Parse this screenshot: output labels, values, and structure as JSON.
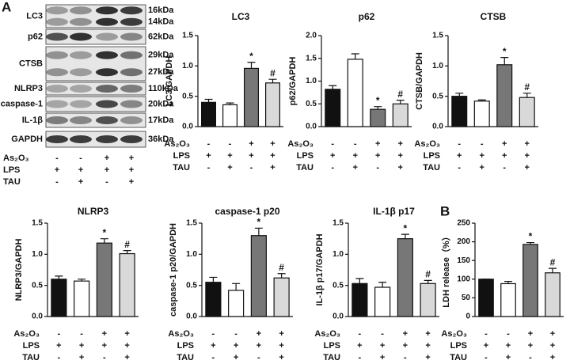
{
  "panel_labels": [
    "A",
    "B"
  ],
  "treatments": {
    "rows": [
      {
        "label": "As₂O₃",
        "signs": [
          "-",
          "-",
          "+",
          "+"
        ]
      },
      {
        "label": "LPS",
        "signs": [
          "+",
          "+",
          "+",
          "+"
        ]
      },
      {
        "label": "TAU",
        "signs": [
          "-",
          "+",
          "-",
          "+"
        ]
      }
    ]
  },
  "blot": {
    "rows": [
      {
        "label": "LC3",
        "sizes": [
          "16kDa",
          "14kDa"
        ]
      },
      {
        "label": "p62",
        "sizes": [
          "62kDa"
        ]
      },
      {
        "label": "CTSB",
        "sizes": [
          "29kDa",
          "27kDa"
        ]
      },
      {
        "label": "NLRP3",
        "sizes": [
          "110kDa"
        ]
      },
      {
        "label": "caspase-1",
        "sizes": [
          "20kDa"
        ]
      },
      {
        "label": "IL-1β",
        "sizes": [
          "17kDa"
        ]
      },
      {
        "label": "GAPDH",
        "sizes": [
          "36kDa"
        ]
      }
    ]
  },
  "chart_data": [
    {
      "type": "bar",
      "title": "LC3",
      "y_label": "LC3/GAPDH",
      "values": [
        0.4,
        0.36,
        0.96,
        0.72
      ],
      "errors": [
        0.05,
        0.03,
        0.1,
        0.06
      ],
      "annotations": [
        null,
        null,
        "*",
        "#"
      ],
      "colors": [
        "#111111",
        "#ffffff",
        "#777777",
        "#d9d9d9"
      ],
      "ylim": [
        0,
        1.5
      ],
      "yticks": [
        {
          "value": 0,
          "label": "0.0"
        },
        0.5,
        {
          "value": 1,
          "label": "1.0"
        },
        1.5
      ]
    },
    {
      "type": "bar",
      "title": "p62",
      "y_label": "p62/GAPDH",
      "values": [
        0.82,
        1.48,
        0.38,
        0.5
      ],
      "errors": [
        0.08,
        0.12,
        0.06,
        0.08
      ],
      "annotations": [
        null,
        null,
        "*",
        "#"
      ],
      "colors": [
        "#111111",
        "#ffffff",
        "#777777",
        "#d9d9d9"
      ],
      "ylim": [
        0,
        2
      ],
      "yticks": [
        {
          "value": 0,
          "label": "0.0"
        },
        0.5,
        {
          "value": 1,
          "label": "1.0"
        },
        1.5,
        {
          "value": 2,
          "label": "2.0"
        }
      ]
    },
    {
      "type": "bar",
      "title": "CTSB",
      "y_label": "CTSB/GAPDH",
      "values": [
        0.5,
        0.42,
        1.02,
        0.48
      ],
      "errors": [
        0.05,
        0.02,
        0.12,
        0.07
      ],
      "annotations": [
        null,
        null,
        "*",
        "#"
      ],
      "colors": [
        "#111111",
        "#ffffff",
        "#777777",
        "#d9d9d9"
      ],
      "ylim": [
        0,
        1.5
      ],
      "yticks": [
        {
          "value": 0,
          "label": "0.0"
        },
        0.5,
        {
          "value": 1,
          "label": "1.0"
        },
        1.5
      ]
    },
    {
      "type": "bar",
      "title": "NLRP3",
      "y_label": "NLRP3/GAPDH",
      "values": [
        0.6,
        0.57,
        1.18,
        1.01
      ],
      "errors": [
        0.05,
        0.03,
        0.07,
        0.05
      ],
      "annotations": [
        null,
        null,
        "*",
        "#"
      ],
      "colors": [
        "#111111",
        "#ffffff",
        "#777777",
        "#d9d9d9"
      ],
      "ylim": [
        0,
        1.5
      ],
      "yticks": [
        {
          "value": 0,
          "label": "0.0"
        },
        0.5,
        {
          "value": 1,
          "label": "1.0"
        },
        1.5
      ]
    },
    {
      "type": "bar",
      "title": "caspase-1 p20",
      "y_label": "caspase-1 p20/GAPDH",
      "values": [
        0.55,
        0.42,
        1.3,
        0.62
      ],
      "errors": [
        0.08,
        0.11,
        0.12,
        0.07
      ],
      "annotations": [
        null,
        null,
        "*",
        "#"
      ],
      "colors": [
        "#111111",
        "#ffffff",
        "#777777",
        "#d9d9d9"
      ],
      "ylim": [
        0,
        1.5
      ],
      "yticks": [
        {
          "value": 0,
          "label": "0.0"
        },
        0.5,
        {
          "value": 1,
          "label": "1.0"
        },
        1.5
      ]
    },
    {
      "type": "bar",
      "title": "IL-1β p17",
      "y_label": "IL-1β p17/GAPDH",
      "values": [
        0.53,
        0.47,
        1.25,
        0.53
      ],
      "errors": [
        0.08,
        0.08,
        0.07,
        0.05
      ],
      "annotations": [
        null,
        null,
        "*",
        "#"
      ],
      "colors": [
        "#111111",
        "#ffffff",
        "#777777",
        "#d9d9d9"
      ],
      "ylim": [
        0,
        1.5
      ],
      "yticks": [
        {
          "value": 0,
          "label": "0.0"
        },
        0.5,
        {
          "value": 1,
          "label": "1.0"
        },
        1.5
      ]
    },
    {
      "type": "bar",
      "y_label": "LDH release（%）",
      "values": [
        100,
        88,
        193,
        117
      ],
      "errors": [
        0,
        6,
        5,
        12
      ],
      "annotations": [
        null,
        null,
        "*",
        "#"
      ],
      "colors": [
        "#111111",
        "#ffffff",
        "#777777",
        "#d9d9d9"
      ],
      "ylim": [
        0,
        250
      ],
      "yticks": [
        0,
        50,
        100,
        150,
        200,
        250
      ]
    }
  ]
}
